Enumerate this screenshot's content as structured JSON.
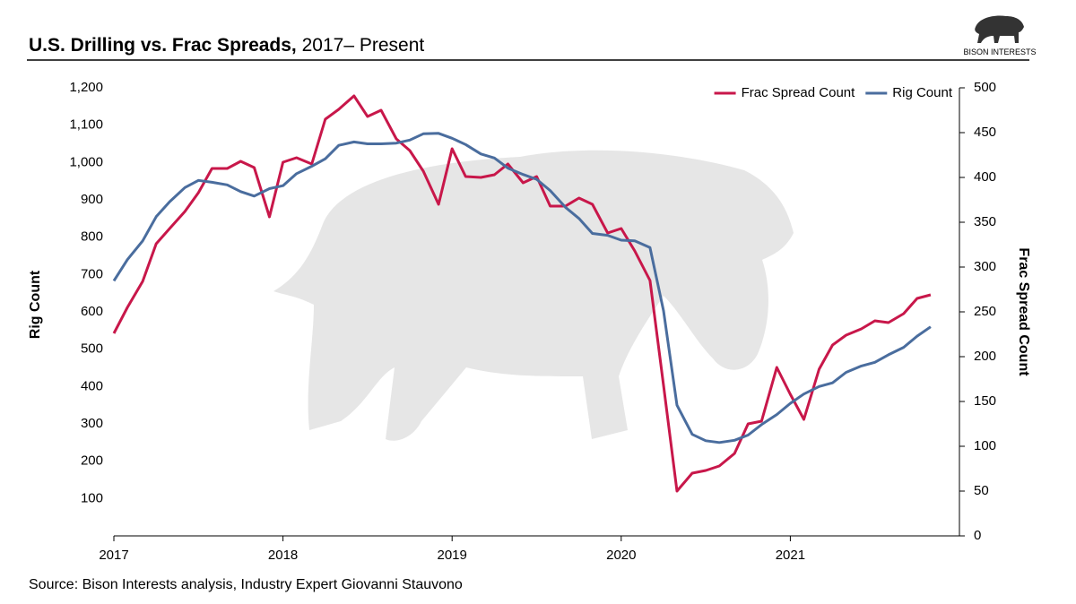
{
  "chart_data": {
    "type": "line",
    "title": "U.S. Drilling vs. Frac Spreads,",
    "title_suffix": "2017– Present",
    "brand": "BISON INTERESTS",
    "source": "Source: Bison Interests analysis, Industry Expert Giovanni Stauvono",
    "y_label": "Rig Count",
    "y2_label": "Frac Spread Count",
    "legend": "top-right",
    "xlim": [
      2017,
      2022
    ],
    "xticks": [
      2017,
      2018,
      2019,
      2020,
      2021
    ],
    "ylim": [
      0,
      1200
    ],
    "yticks": [
      100,
      200,
      300,
      400,
      500,
      600,
      700,
      800,
      900,
      {
        "value": 1000,
        "label": "1,000"
      },
      {
        "value": 1100,
        "label": "1,100"
      },
      {
        "value": 1200,
        "label": "1,200"
      }
    ],
    "y2lim": [
      0,
      500
    ],
    "y2ticks": [
      0,
      50,
      100,
      150,
      200,
      250,
      300,
      350,
      400,
      450,
      500
    ],
    "x": [
      2017,
      2017.08,
      2017.17,
      2017.25,
      2017.33,
      2017.42,
      2017.5,
      2017.58,
      2017.67,
      2017.75,
      2017.83,
      2017.92,
      2018,
      2018.08,
      2018.17,
      2018.25,
      2018.33,
      2018.42,
      2018.5,
      2018.58,
      2018.67,
      2018.75,
      2018.83,
      2018.92,
      2019,
      2019.08,
      2019.17,
      2019.25,
      2019.33,
      2019.42,
      2019.5,
      2019.58,
      2019.67,
      2019.75,
      2019.83,
      2019.92,
      2020,
      2020.08,
      2020.17,
      2020.25,
      2020.33,
      2020.42,
      2020.5,
      2020.58,
      2020.67,
      2020.75,
      2020.83,
      2020.92,
      2021,
      2021.08,
      2021.17,
      2021.25,
      2021.33,
      2021.42,
      2021.5,
      2021.58,
      2021.67,
      2021.75,
      2021.83
    ],
    "series": [
      {
        "name": "Frac Spread Count",
        "color": "#c8174a",
        "axis": "y2",
        "values": [
          226,
          255,
          284,
          326,
          343,
          362,
          383,
          410,
          410,
          418,
          411,
          356,
          417,
          422,
          415,
          465,
          476,
          491,
          468,
          475,
          443,
          430,
          407,
          370,
          432,
          401,
          400,
          403,
          415,
          394,
          401,
          368,
          368,
          377,
          370,
          338,
          343,
          318,
          285,
          168,
          50,
          70,
          73,
          78,
          92,
          125,
          128,
          188,
          158,
          130,
          186,
          213,
          224,
          231,
          240,
          238,
          248,
          265,
          269
        ]
      },
      {
        "name": "Rig Count",
        "color": "#4a6d9e",
        "values": [
          683,
          740,
          790,
          855,
          895,
          933,
          952,
          947,
          940,
          922,
          910,
          930,
          938,
          970,
          990,
          1010,
          1046,
          1055,
          1050,
          1050,
          1052,
          1060,
          1077,
          1078,
          1065,
          1048,
          1023,
          1012,
          985,
          968,
          955,
          925,
          880,
          850,
          810,
          805,
          792,
          790,
          772,
          603,
          350,
          272,
          255,
          250,
          256,
          270,
          298,
          325,
          355,
          380,
          400,
          410,
          438,
          455,
          465,
          485,
          505,
          535,
          560
        ]
      }
    ]
  }
}
